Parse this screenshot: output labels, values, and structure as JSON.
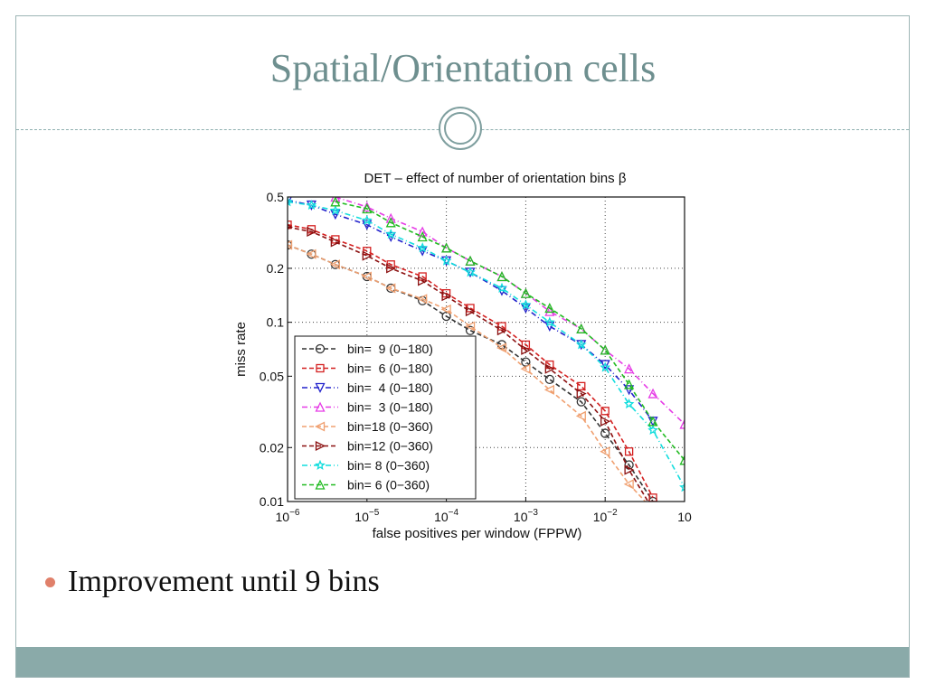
{
  "slide": {
    "title": "Spatial/Orientation cells",
    "bullets": [
      "Improvement until 9 bins"
    ],
    "colors": {
      "title": "#6e8f8f",
      "band": "#8aaaa9",
      "bullet": "#e0806a"
    }
  },
  "chart_data": {
    "type": "line",
    "title": "DET – effect of number of orientation bins β",
    "xlabel": "false positives per window (FPPW)",
    "ylabel": "miss rate",
    "xscale": "log",
    "yscale": "log",
    "xlim": [
      1e-06,
      0.1
    ],
    "ylim": [
      0.01,
      0.5
    ],
    "x_ticks": [
      {
        "value": 1e-06,
        "base": "10",
        "exp": "−6"
      },
      {
        "value": 1e-05,
        "base": "10",
        "exp": "−5"
      },
      {
        "value": 0.0001,
        "base": "10",
        "exp": "−4"
      },
      {
        "value": 0.001,
        "base": "10",
        "exp": "−3"
      },
      {
        "value": 0.01,
        "base": "10",
        "exp": "−2"
      },
      {
        "value": 0.1,
        "base": "10",
        "exp": ""
      }
    ],
    "y_ticks": [
      {
        "value": 0.01,
        "label": "0.01"
      },
      {
        "value": 0.02,
        "label": "0.02"
      },
      {
        "value": 0.05,
        "label": "0.05"
      },
      {
        "value": 0.1,
        "label": "0.1"
      },
      {
        "value": 0.2,
        "label": "0.2"
      },
      {
        "value": 0.5,
        "label": "0.5"
      }
    ],
    "grid": true,
    "legend_position": "bottom-left",
    "series": [
      {
        "name": "bin=  9 (0−180)",
        "color": "#333333",
        "marker": "circle",
        "dash": "5,3",
        "x": [
          1e-06,
          2e-06,
          4e-06,
          1e-05,
          2e-05,
          5e-05,
          0.0001,
          0.0002,
          0.0005,
          0.001,
          0.002,
          0.005,
          0.01,
          0.02,
          0.04
        ],
        "y": [
          0.27,
          0.24,
          0.21,
          0.18,
          0.155,
          0.132,
          0.108,
          0.09,
          0.075,
          0.06,
          0.048,
          0.036,
          0.024,
          0.016,
          0.01
        ]
      },
      {
        "name": "bin=  6 (0−180)",
        "color": "#d42020",
        "marker": "square",
        "dash": "5,3",
        "x": [
          1e-06,
          2e-06,
          4e-06,
          1e-05,
          2e-05,
          5e-05,
          0.0001,
          0.0002,
          0.0005,
          0.001,
          0.002,
          0.005,
          0.01,
          0.02,
          0.04
        ],
        "y": [
          0.35,
          0.33,
          0.29,
          0.25,
          0.21,
          0.18,
          0.145,
          0.12,
          0.095,
          0.075,
          0.058,
          0.044,
          0.032,
          0.019,
          0.0105
        ]
      },
      {
        "name": "bin=  4 (0−180)",
        "color": "#2222cc",
        "marker": "triangle-down",
        "dash": "6,3,1,3",
        "x": [
          1e-06,
          2e-06,
          4e-06,
          1e-05,
          2e-05,
          5e-05,
          0.0001,
          0.0002,
          0.0005,
          0.001,
          0.002,
          0.005,
          0.01,
          0.02,
          0.04
        ],
        "y": [
          0.48,
          0.45,
          0.4,
          0.35,
          0.3,
          0.25,
          0.22,
          0.19,
          0.15,
          0.12,
          0.095,
          0.075,
          0.058,
          0.042,
          0.028
        ]
      },
      {
        "name": "bin=  3 (0−180)",
        "color": "#e63ce6",
        "marker": "triangle-up",
        "dash": "6,3,1,3",
        "x": [
          4e-06,
          1e-05,
          2e-05,
          5e-05,
          0.0001,
          0.0002,
          0.0005,
          0.001,
          0.002,
          0.005,
          0.01,
          0.02,
          0.04,
          0.1
        ],
        "y": [
          0.5,
          0.44,
          0.38,
          0.32,
          0.26,
          0.22,
          0.18,
          0.145,
          0.115,
          0.092,
          0.07,
          0.055,
          0.04,
          0.027
        ]
      },
      {
        "name": "bin=18 (0−360)",
        "color": "#f0a070",
        "marker": "triangle-left",
        "dash": "5,3",
        "x": [
          1e-06,
          2e-06,
          4e-06,
          1e-05,
          2e-05,
          5e-05,
          0.0001,
          0.0002,
          0.0005,
          0.001,
          0.002,
          0.005,
          0.01,
          0.02,
          0.04
        ],
        "y": [
          0.27,
          0.24,
          0.21,
          0.18,
          0.155,
          0.135,
          0.118,
          0.095,
          0.072,
          0.055,
          0.042,
          0.03,
          0.019,
          0.0125,
          0.009
        ]
      },
      {
        "name": "bin=12 (0−360)",
        "color": "#8b1010",
        "marker": "triangle-right",
        "dash": "5,3",
        "x": [
          1e-06,
          2e-06,
          4e-06,
          1e-05,
          2e-05,
          5e-05,
          0.0001,
          0.0002,
          0.0005,
          0.001,
          0.002,
          0.005,
          0.01,
          0.02,
          0.04
        ],
        "y": [
          0.34,
          0.32,
          0.28,
          0.235,
          0.2,
          0.17,
          0.14,
          0.115,
          0.09,
          0.07,
          0.055,
          0.04,
          0.028,
          0.015,
          0.009
        ]
      },
      {
        "name": "bin= 8 (0−360)",
        "color": "#11dddd",
        "marker": "star",
        "dash": "6,3,1,3",
        "x": [
          1e-06,
          2e-06,
          4e-06,
          1e-05,
          2e-05,
          5e-05,
          0.0001,
          0.0002,
          0.0005,
          0.001,
          0.002,
          0.005,
          0.01,
          0.02,
          0.04,
          0.1
        ],
        "y": [
          0.47,
          0.45,
          0.42,
          0.37,
          0.31,
          0.26,
          0.22,
          0.19,
          0.155,
          0.125,
          0.1,
          0.075,
          0.056,
          0.035,
          0.025,
          0.012
        ]
      },
      {
        "name": "bin= 6 (0−360)",
        "color": "#22bb22",
        "marker": "triangle-up",
        "dash": "5,3",
        "x": [
          4e-06,
          1e-05,
          2e-05,
          5e-05,
          0.0001,
          0.0002,
          0.0005,
          0.001,
          0.002,
          0.005,
          0.01,
          0.02,
          0.04,
          0.1
        ],
        "y": [
          0.47,
          0.43,
          0.36,
          0.3,
          0.26,
          0.22,
          0.18,
          0.145,
          0.12,
          0.092,
          0.07,
          0.045,
          0.028,
          0.017
        ]
      }
    ]
  }
}
